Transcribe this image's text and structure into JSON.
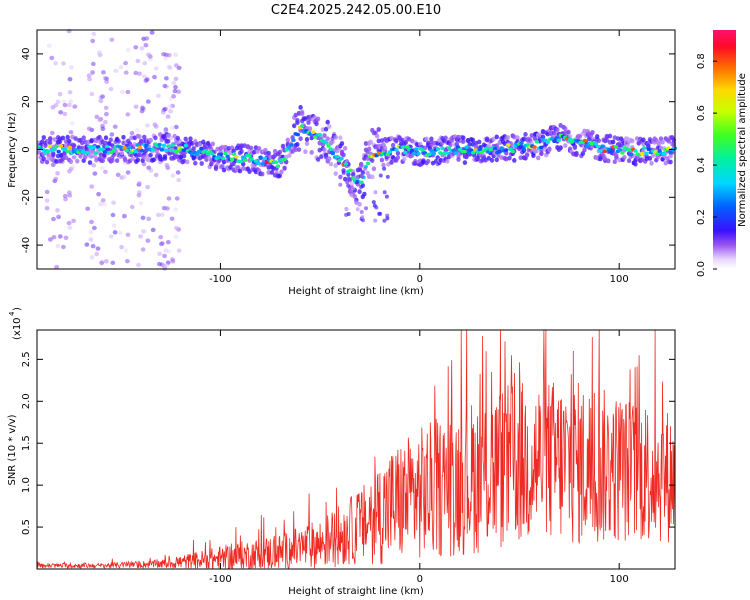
{
  "title": "C2E4.2025.242.05.00.E10",
  "chart_data": [
    {
      "type": "heatmap",
      "xlabel": "Height of straight line (km)",
      "ylabel": "Frequency (Hz)",
      "xlim": [
        -192,
        128
      ],
      "ylim": [
        -50,
        50
      ],
      "xticks": [
        -100,
        0,
        100
      ],
      "yticks": [
        -40,
        -20,
        0,
        20,
        40
      ],
      "colorbar": {
        "label": "Normalized spectral amplitude",
        "range": [
          0,
          0.92
        ],
        "ticks": [
          0.0,
          0.2,
          0.4,
          0.6,
          0.8
        ]
      },
      "ridge": [
        {
          "x": -190,
          "f": 0
        },
        {
          "x": -170,
          "f": 0
        },
        {
          "x": -150,
          "f": 0
        },
        {
          "x": -130,
          "f": 1
        },
        {
          "x": -115,
          "f": 0
        },
        {
          "x": -100,
          "f": -3
        },
        {
          "x": -85,
          "f": -4
        },
        {
          "x": -70,
          "f": -6
        },
        {
          "x": -60,
          "f": 9
        },
        {
          "x": -50,
          "f": 5
        },
        {
          "x": -40,
          "f": -4
        },
        {
          "x": -30,
          "f": -15
        },
        {
          "x": -25,
          "f": -2
        },
        {
          "x": -10,
          "f": 0
        },
        {
          "x": 0,
          "f": -1
        },
        {
          "x": 20,
          "f": 0
        },
        {
          "x": 40,
          "f": 0
        },
        {
          "x": 60,
          "f": 2
        },
        {
          "x": 70,
          "f": 5
        },
        {
          "x": 90,
          "f": 1
        },
        {
          "x": 110,
          "f": -1
        },
        {
          "x": 128,
          "f": 0
        }
      ]
    },
    {
      "type": "line",
      "xlabel": "Height of straight line (km)",
      "ylabel": "SNR (10 * v/v)",
      "y_multiplier": "(x10",
      "y_multiplier_exp": "4",
      "xlim": [
        -192,
        128
      ],
      "ylim": [
        0,
        2.85
      ],
      "xticks": [
        -100,
        0,
        100
      ],
      "yticks": [
        0.5,
        1.0,
        1.5,
        2.0,
        2.5
      ],
      "envelope": [
        {
          "x": -192,
          "mean": 0.04,
          "spread": 0.03
        },
        {
          "x": -160,
          "mean": 0.04,
          "spread": 0.03
        },
        {
          "x": -130,
          "mean": 0.06,
          "spread": 0.05
        },
        {
          "x": -110,
          "mean": 0.1,
          "spread": 0.12
        },
        {
          "x": -90,
          "mean": 0.15,
          "spread": 0.18
        },
        {
          "x": -70,
          "mean": 0.2,
          "spread": 0.22
        },
        {
          "x": -50,
          "mean": 0.3,
          "spread": 0.3
        },
        {
          "x": -30,
          "mean": 0.5,
          "spread": 0.45
        },
        {
          "x": -15,
          "mean": 0.75,
          "spread": 0.7
        },
        {
          "x": 0,
          "mean": 0.9,
          "spread": 0.8
        },
        {
          "x": 20,
          "mean": 1.05,
          "spread": 0.9
        },
        {
          "x": 40,
          "mean": 1.2,
          "spread": 1.0
        },
        {
          "x": 60,
          "mean": 1.3,
          "spread": 1.0
        },
        {
          "x": 80,
          "mean": 1.25,
          "spread": 1.0
        },
        {
          "x": 100,
          "mean": 1.2,
          "spread": 0.9
        },
        {
          "x": 128,
          "mean": 1.1,
          "spread": 0.8
        }
      ],
      "peaks": [
        {
          "x": -90,
          "y": 0.4
        },
        {
          "x": 36,
          "y": 2.35
        },
        {
          "x": 46,
          "y": 2.55
        },
        {
          "x": 77,
          "y": 2.6
        },
        {
          "x": 90,
          "y": 2.85
        },
        {
          "x": 110,
          "y": 2.55
        }
      ],
      "color": "#ee2a22"
    }
  ]
}
